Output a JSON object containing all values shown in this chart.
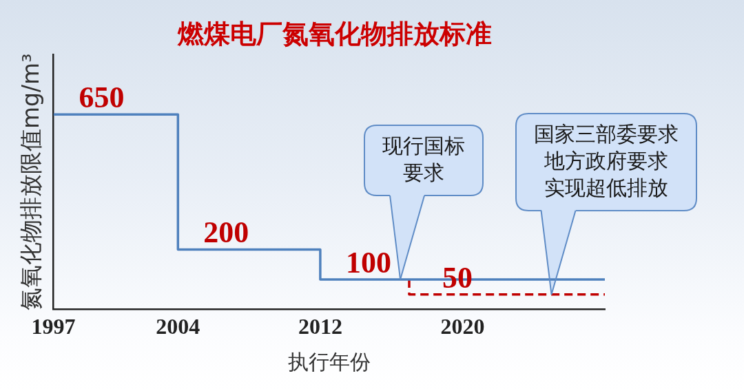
{
  "chart_data": {
    "type": "step",
    "title": "燃煤电厂氮氧化物排放标准",
    "xlabel": "执行年份",
    "ylabel": "氮氧化物排放限值mg/m³",
    "xlim": [
      1997,
      2028
    ],
    "xticks": [
      1997,
      2004,
      2012,
      2020
    ],
    "ylim": [
      0,
      850
    ],
    "tick_labels": "x",
    "series": [
      {
        "color": "#4f81bd",
        "x": [
          1997,
          2004,
          2012,
          2028
        ],
        "values": [
          650,
          200,
          100,
          100
        ],
        "value_labels": [
          "650",
          "200",
          "100",
          null
        ]
      },
      {
        "color": "#c00000",
        "line_style": "dashed",
        "x": [
          2017,
          2017,
          2028
        ],
        "values": [
          100,
          50,
          50
        ],
        "value_labels": [
          null,
          "50",
          null
        ]
      }
    ],
    "annotations": [
      {
        "text": "现行国标要求",
        "x": 2016.5,
        "y": 100
      },
      {
        "text": "国家三部委要求地方政府要求实现超低排放",
        "x": 2025,
        "y": 50
      }
    ],
    "line_style": "solid",
    "marker": "none",
    "grid": false,
    "legend": false
  }
}
